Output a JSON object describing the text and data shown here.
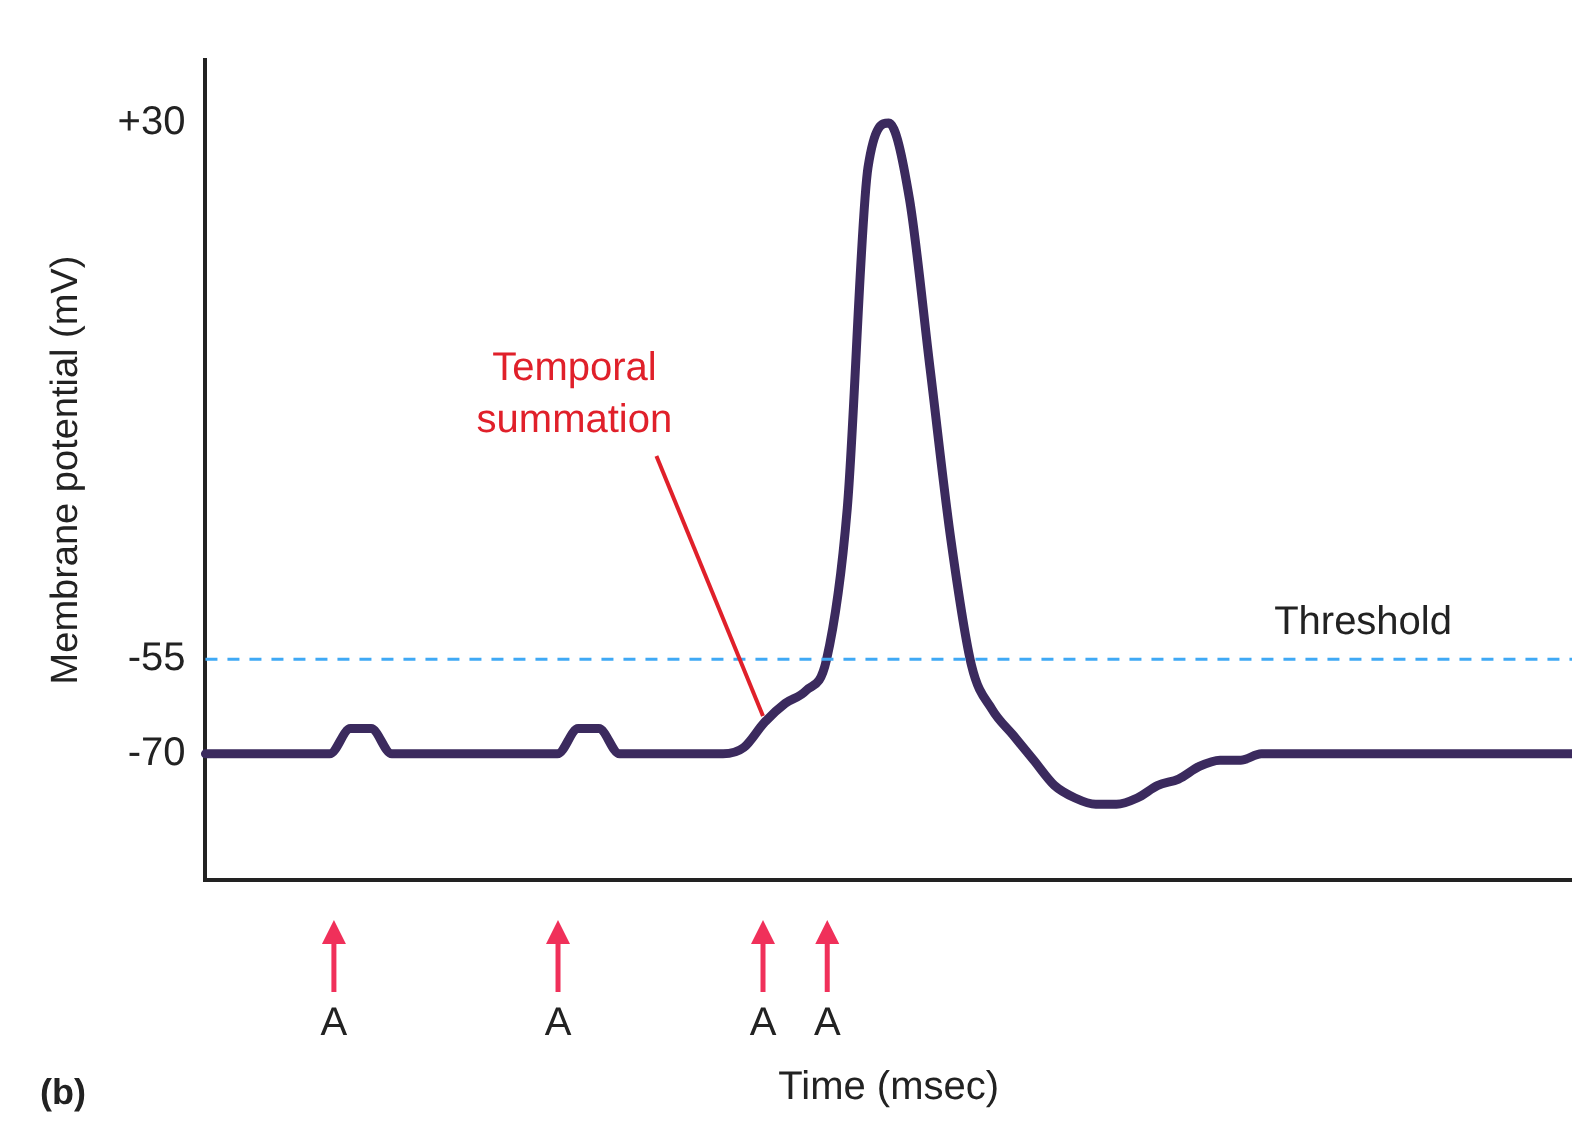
{
  "chart_data": {
    "type": "line",
    "xlabel": "Time (msec)",
    "ylabel": "Membrane potential (mV)",
    "categories": [
      null,
      null,
      null,
      null,
      null,
      null,
      null,
      null,
      null,
      null,
      null,
      null,
      null,
      null,
      null,
      null,
      null,
      null,
      null,
      null,
      null,
      null,
      null,
      null,
      null,
      null,
      null,
      null,
      null,
      null,
      null,
      null,
      null,
      null,
      null,
      null,
      null,
      null,
      null,
      null,
      null,
      null,
      null,
      null,
      null,
      null,
      null,
      null,
      null,
      null,
      null,
      null,
      null,
      null,
      null,
      null,
      null,
      null,
      null,
      null,
      null,
      null,
      null,
      null,
      null,
      null,
      null
    ],
    "series": [
      {
        "color": "#3b2a5e",
        "values": [
          -70,
          -70,
          -70,
          -70,
          -70,
          -70,
          -70,
          -66,
          -66,
          -70,
          -70,
          -70,
          -70,
          -70,
          -70,
          -70,
          -70,
          -70,
          -66,
          -66,
          -70,
          -70,
          -70,
          -70,
          -70,
          -70,
          -69,
          -65,
          -62,
          -60,
          -55,
          -31,
          23,
          30,
          18,
          -9,
          -36,
          -56,
          -63,
          -67,
          -71,
          -75,
          -77,
          -78,
          -78,
          -77,
          -75,
          -74,
          -72,
          -71,
          -71,
          -70,
          -70,
          -70,
          -70,
          -70,
          -70,
          -70,
          -70,
          -70,
          -70,
          -70,
          -70,
          -70,
          -70,
          -70,
          -70
        ]
      }
    ],
    "ylim": [
      -90,
      40
    ],
    "yticks": [
      {
        "value": 30,
        "label": "+30"
      },
      -55,
      -70
    ],
    "ref_lines": [
      {
        "axis": "y",
        "value": -55,
        "label": "Threshold",
        "color": "#3fa9f5",
        "line_style": "dashed"
      }
    ],
    "annotations": [
      "Temporal summation",
      "A",
      "A",
      "A",
      "A",
      "(b)"
    ],
    "grid": false,
    "legend": false,
    "marker": "none",
    "line_style": "solid",
    "tick_labels": "y"
  }
}
